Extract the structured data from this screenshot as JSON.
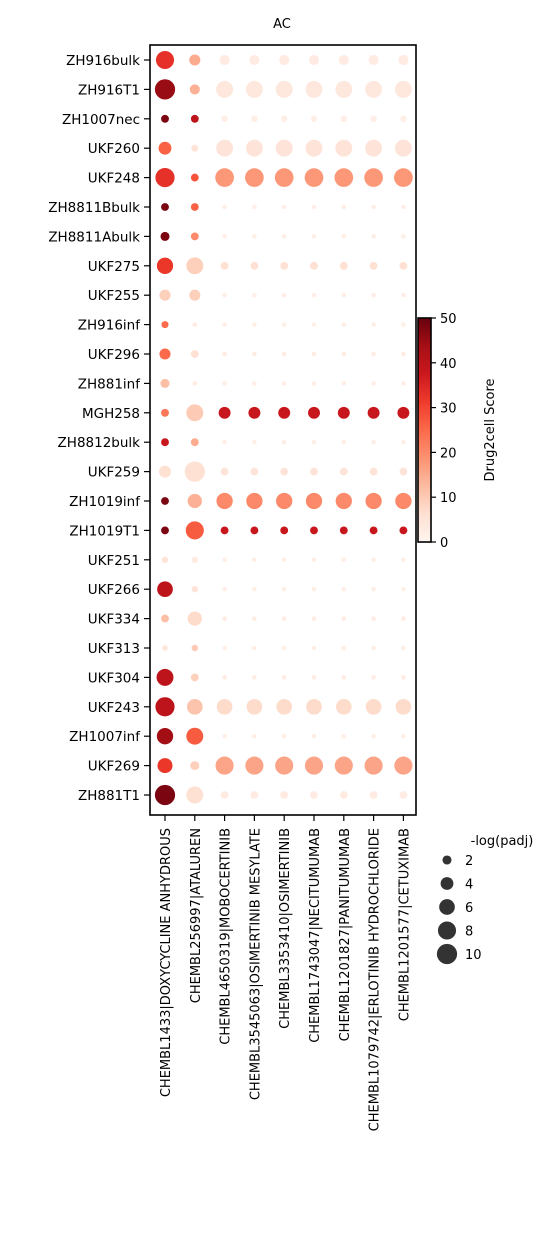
{
  "chart_data": {
    "type": "scatter",
    "subtype": "dotplot",
    "title": "AC",
    "rows": [
      "ZH916bulk",
      "ZH916T1",
      "ZH1007nec",
      "UKF260",
      "UKF248",
      "ZH8811Bbulk",
      "ZH8811Abulk",
      "UKF275",
      "UKF255",
      "ZH916inf",
      "UKF296",
      "ZH881inf",
      "MGH258",
      "ZH8812bulk",
      "UKF259",
      "ZH1019inf",
      "ZH1019T1",
      "UKF251",
      "UKF266",
      "UKF334",
      "UKF313",
      "UKF304",
      "UKF243",
      "ZH1007inf",
      "UKF269",
      "ZH881T1"
    ],
    "columns": [
      "CHEMBL1433|DOXYCYCLINE ANHYDROUS",
      "CHEMBL256997|ATALUREN",
      "CHEMBL4650319|MOBOCERTINIB",
      "CHEMBL3545063|OSIMERTINIB MESYLATE",
      "CHEMBL3353410|OSIMERTINIB",
      "CHEMBL1743047|NECITUMUMAB",
      "CHEMBL1201827|PANITUMUMAB",
      "CHEMBL1079742|ERLOTINIB HYDROCHLORIDE",
      "CHEMBL1201577|CETUXIMAB"
    ],
    "score": [
      [
        33,
        15,
        3,
        3,
        3,
        3,
        3,
        3,
        3
      ],
      [
        45,
        14,
        4,
        4,
        4,
        4,
        4,
        4,
        4
      ],
      [
        48,
        40,
        2,
        2,
        2,
        2,
        2,
        2,
        2
      ],
      [
        26,
        5,
        5,
        5,
        5,
        5,
        5,
        5,
        5
      ],
      [
        33,
        28,
        18,
        18,
        18,
        18,
        18,
        18,
        18
      ],
      [
        48,
        26,
        2,
        2,
        2,
        2,
        2,
        2,
        2
      ],
      [
        48,
        20,
        2,
        2,
        2,
        2,
        2,
        2,
        2
      ],
      [
        32,
        9,
        6,
        6,
        6,
        6,
        6,
        6,
        6
      ],
      [
        9,
        9,
        2,
        2,
        2,
        2,
        2,
        2,
        2
      ],
      [
        25,
        3,
        2,
        2,
        2,
        2,
        2,
        2,
        2
      ],
      [
        25,
        6,
        3,
        3,
        3,
        3,
        3,
        3,
        3
      ],
      [
        12,
        3,
        2,
        2,
        2,
        2,
        2,
        2,
        2
      ],
      [
        23,
        10,
        38,
        38,
        38,
        38,
        38,
        38,
        38
      ],
      [
        38,
        15,
        2,
        2,
        2,
        2,
        2,
        2,
        2
      ],
      [
        6,
        6,
        5,
        5,
        5,
        5,
        5,
        5,
        5
      ],
      [
        48,
        14,
        20,
        20,
        20,
        20,
        20,
        20,
        20
      ],
      [
        48,
        27,
        38,
        38,
        38,
        38,
        38,
        38,
        38
      ],
      [
        5,
        3,
        2,
        2,
        2,
        2,
        2,
        2,
        2
      ],
      [
        40,
        5,
        2,
        2,
        2,
        2,
        2,
        2,
        2
      ],
      [
        12,
        7,
        3,
        3,
        3,
        3,
        3,
        3,
        3
      ],
      [
        4,
        10,
        2,
        2,
        2,
        2,
        2,
        2,
        2
      ],
      [
        40,
        9,
        3,
        3,
        3,
        3,
        3,
        3,
        3
      ],
      [
        40,
        11,
        7,
        7,
        7,
        7,
        7,
        7,
        7
      ],
      [
        44,
        27,
        2,
        2,
        2,
        2,
        2,
        2,
        2
      ],
      [
        32,
        9,
        16,
        16,
        16,
        16,
        16,
        16,
        16
      ],
      [
        48,
        6,
        3,
        3,
        3,
        3,
        3,
        3,
        3
      ]
    ],
    "neglog_padj": [
      [
        8,
        3,
        2.5,
        2.5,
        2.5,
        2.5,
        2.5,
        2.5,
        2.5
      ],
      [
        10,
        2.5,
        7,
        7,
        7,
        7,
        7,
        7,
        7
      ],
      [
        1.5,
        1.5,
        1,
        1,
        1,
        1,
        1,
        1,
        1
      ],
      [
        4,
        1.2,
        7,
        7,
        7,
        7,
        7,
        7,
        7
      ],
      [
        9,
        1.5,
        8.5,
        8.5,
        8.5,
        8.5,
        8.5,
        8.5,
        8.5
      ],
      [
        1.5,
        1.5,
        0.5,
        0.5,
        0.5,
        0.5,
        0.5,
        0.5,
        0.5
      ],
      [
        2,
        1.5,
        0.5,
        0.5,
        0.5,
        0.5,
        0.5,
        0.5,
        0.5
      ],
      [
        6.5,
        7,
        1.5,
        1.5,
        1.5,
        1.5,
        1.5,
        1.5,
        1.5
      ],
      [
        3,
        3,
        0.5,
        0.5,
        0.5,
        0.5,
        0.5,
        0.5,
        0.5
      ],
      [
        1.2,
        0.5,
        0.5,
        0.5,
        0.5,
        0.5,
        0.5,
        0.5,
        0.5
      ],
      [
        3,
        1.5,
        0.5,
        0.5,
        0.5,
        0.5,
        0.5,
        0.5,
        0.5
      ],
      [
        2,
        0.5,
        0.5,
        0.5,
        0.5,
        0.5,
        0.5,
        0.5,
        0.5
      ],
      [
        1.5,
        7,
        3.5,
        3.5,
        3.5,
        3.5,
        3.5,
        3.5,
        3.5
      ],
      [
        1.5,
        1.5,
        0.5,
        0.5,
        0.5,
        0.5,
        0.5,
        0.5,
        0.5
      ],
      [
        3.5,
        10,
        1.5,
        1.5,
        1.5,
        1.5,
        1.5,
        1.5,
        1.5
      ],
      [
        1.5,
        5,
        6.5,
        6.5,
        6.5,
        6.5,
        6.5,
        6.5,
        6.5
      ],
      [
        1.5,
        8,
        1.5,
        1.5,
        1.5,
        1.5,
        1.5,
        1.5,
        1.5
      ],
      [
        1,
        1,
        0.5,
        0.5,
        0.5,
        0.5,
        0.5,
        0.5,
        0.5
      ],
      [
        6,
        1,
        0.5,
        0.5,
        0.5,
        0.5,
        0.5,
        0.5,
        0.5
      ],
      [
        1.5,
        5,
        0.5,
        0.5,
        0.5,
        0.5,
        0.5,
        0.5,
        0.5
      ],
      [
        0.8,
        1,
        0.5,
        0.5,
        0.5,
        0.5,
        0.5,
        0.5,
        0.5
      ],
      [
        7,
        1.5,
        0.5,
        0.5,
        0.5,
        0.5,
        0.5,
        0.5,
        0.5
      ],
      [
        9,
        6,
        6,
        6,
        6,
        6,
        6,
        6,
        6
      ],
      [
        6.5,
        7,
        0.5,
        0.5,
        0.5,
        0.5,
        0.5,
        0.5,
        0.5
      ],
      [
        5.5,
        2,
        8,
        8,
        8,
        8,
        8,
        8,
        8
      ],
      [
        10,
        7,
        1.5,
        1.5,
        1.5,
        1.5,
        1.5,
        1.5,
        1.5
      ]
    ],
    "colorbar": {
      "label": "Drug2cell Score",
      "range": [
        0,
        50
      ],
      "ticks": [
        0,
        10,
        20,
        30,
        40,
        50
      ],
      "colormap": "Reds",
      "colors": [
        "#fff5f0",
        "#fee0d2",
        "#fcbba1",
        "#fc9272",
        "#fb6a4a",
        "#ef3b2c",
        "#cb181d",
        "#a50f15",
        "#67000d"
      ]
    },
    "size_legend": {
      "title": "-log(padj)",
      "values": [
        2,
        4,
        6,
        8,
        10
      ]
    },
    "grid": false
  }
}
